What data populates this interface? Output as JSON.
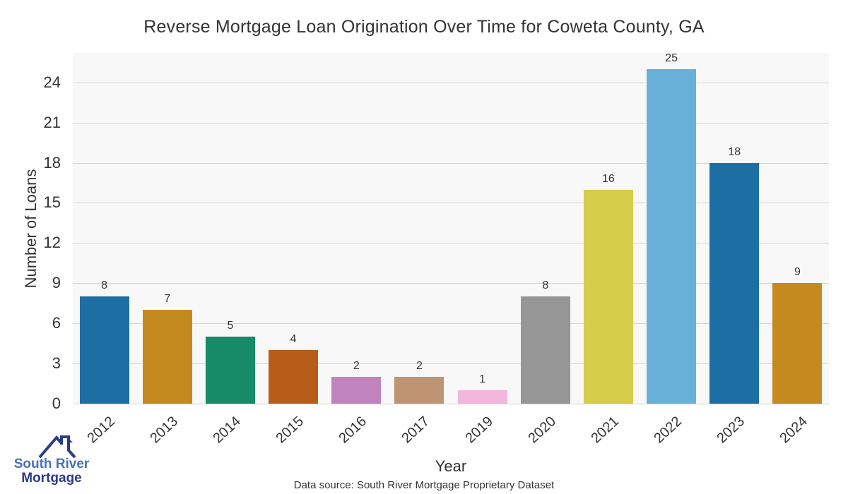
{
  "title": "Reverse Mortgage Loan Origination Over Time for Coweta County, GA",
  "chart_data": {
    "type": "bar",
    "title": "Reverse Mortgage Loan Origination Over Time for Coweta County, GA",
    "xlabel": "Year",
    "ylabel": "Number of Loans",
    "categories": [
      "2012",
      "2013",
      "2014",
      "2015",
      "2016",
      "2017",
      "2019",
      "2020",
      "2021",
      "2022",
      "2023",
      "2024"
    ],
    "values": [
      8,
      7,
      5,
      4,
      2,
      2,
      1,
      8,
      16,
      25,
      18,
      9
    ],
    "bar_colors": [
      "#1d6fa3",
      "#c48a20",
      "#178a68",
      "#b85c1a",
      "#c083bd",
      "#bf9472",
      "#f3b7de",
      "#969696",
      "#d5cd49",
      "#68b0d8",
      "#1d6fa3",
      "#c48a20"
    ],
    "yticks": [
      0,
      3,
      6,
      9,
      12,
      15,
      18,
      21,
      24
    ],
    "ylim": [
      0,
      26.2
    ],
    "grid": true,
    "legend": "none",
    "plot_bg": "#f8f8f8",
    "grid_color": "#d4d4d4"
  },
  "footer": {
    "source_note": "Data source: South River Mortgage Proprietary Dataset"
  },
  "logo": {
    "line1": "South River",
    "line2": "Mortgage",
    "line1_color": "#4a70ba",
    "line2_color": "#2c3a8c"
  }
}
